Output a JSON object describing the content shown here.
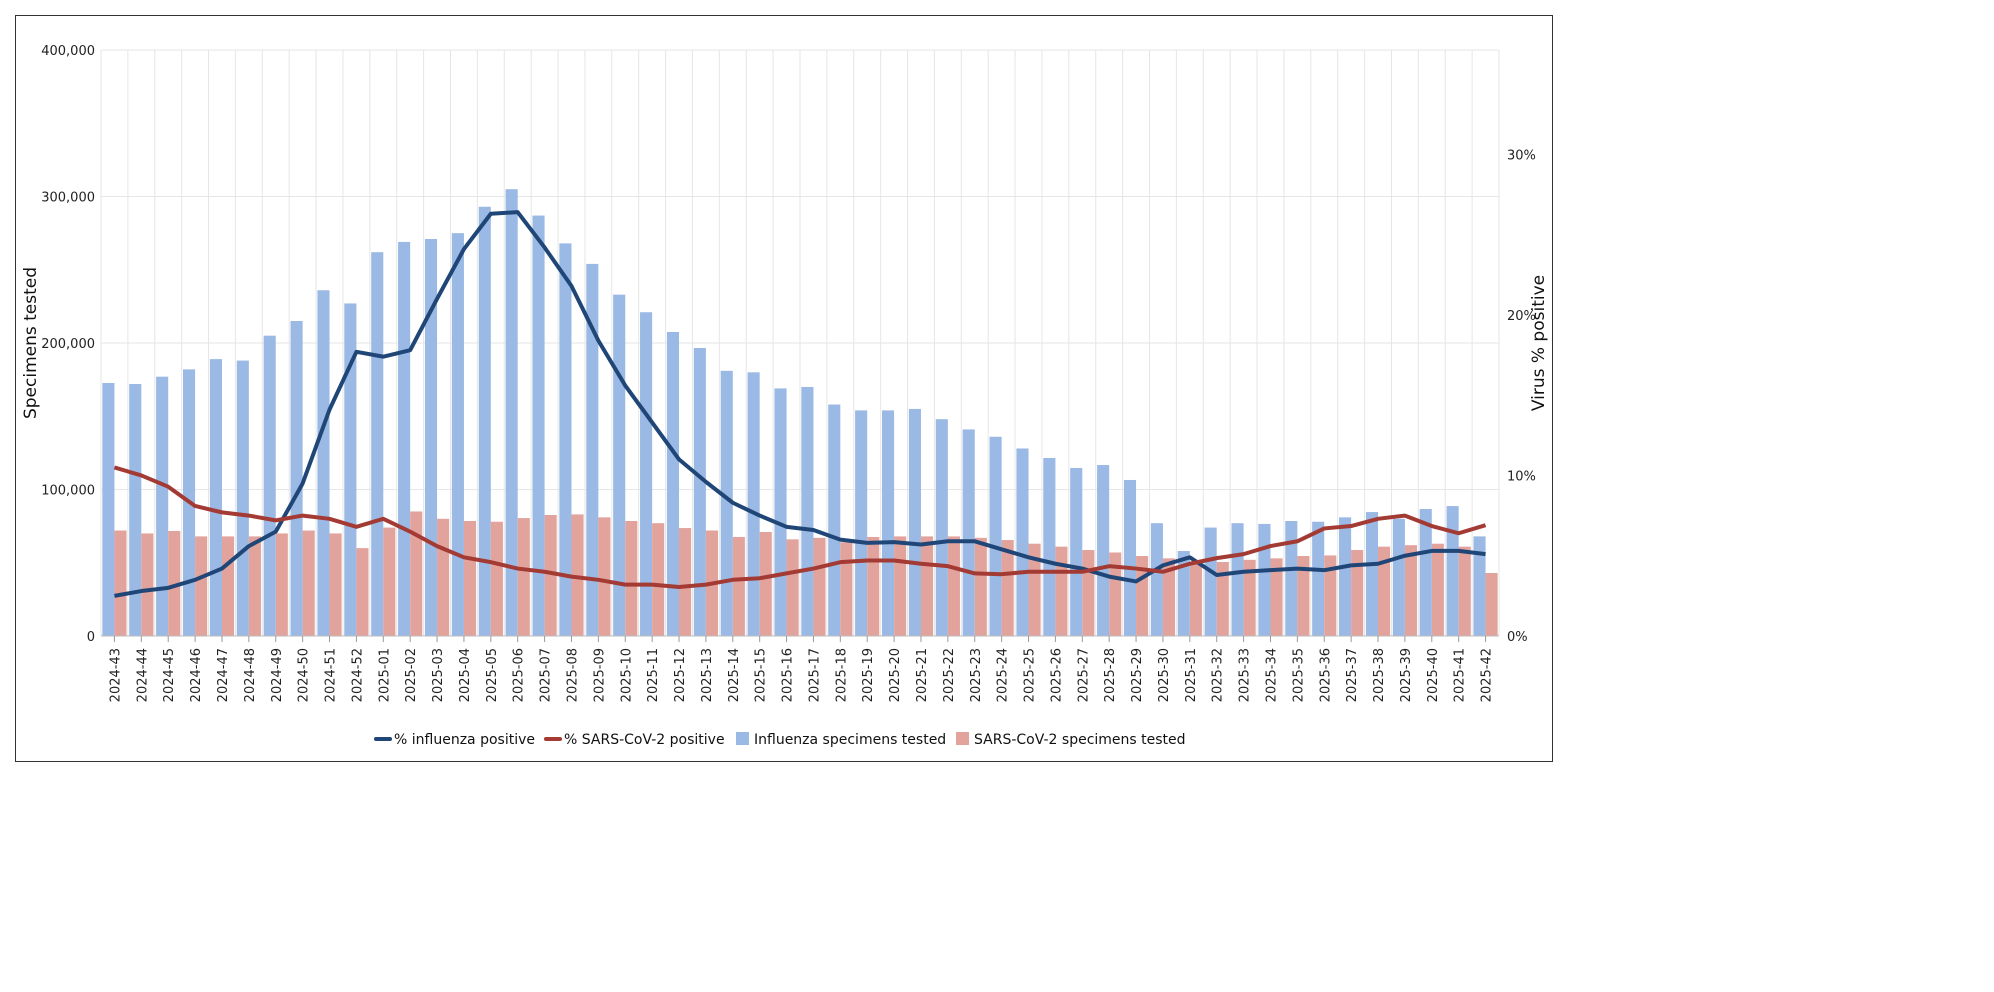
{
  "chart_data": {
    "type": "bar+line",
    "title": "",
    "xlabel": "",
    "ylabel": "Specimens tested",
    "ylabel_right": "Virus % positive",
    "ylim": [
      0,
      400000
    ],
    "ylim_right": [
      0,
      36.5
    ],
    "yticks": [
      "0",
      "100,000",
      "200,000",
      "300,000",
      "400,000"
    ],
    "yticks_right": [
      "0%",
      "10%",
      "20%",
      "30%"
    ],
    "grid": true,
    "legend_position": "bottom",
    "categories": [
      "2024-43",
      "2024-44",
      "2024-45",
      "2024-46",
      "2024-47",
      "2024-48",
      "2024-49",
      "2024-50",
      "2024-51",
      "2024-52",
      "2025-01",
      "2025-02",
      "2025-03",
      "2025-04",
      "2025-05",
      "2025-06",
      "2025-07",
      "2025-08",
      "2025-09",
      "2025-10",
      "2025-11",
      "2025-12",
      "2025-13",
      "2025-14",
      "2025-15",
      "2025-16",
      "2025-17",
      "2025-18",
      "2025-19",
      "2025-20",
      "2025-21",
      "2025-22",
      "2025-23",
      "2025-24",
      "2025-25",
      "2025-26",
      "2025-27",
      "2025-28",
      "2025-29",
      "2025-30",
      "2025-31",
      "2025-32",
      "2025-33",
      "2025-34",
      "2025-35",
      "2025-36",
      "2025-37",
      "2025-38",
      "2025-39",
      "2025-40",
      "2025-41",
      "2025-42"
    ],
    "series": [
      {
        "name": "Influenza specimens tested",
        "kind": "bar",
        "axis": "left",
        "color": "#9ab9e4",
        "values": [
          172700,
          172000,
          177000,
          182000,
          189000,
          188000,
          205000,
          215000,
          236000,
          227000,
          262000,
          269000,
          271000,
          275000,
          293000,
          305000,
          287000,
          268000,
          254000,
          233000,
          221000,
          207500,
          196600,
          181000,
          180000,
          169000,
          170000,
          158000,
          154000,
          154000,
          155000,
          148000,
          141000,
          136000,
          128000,
          121500,
          114700,
          116700,
          106500,
          77000,
          58000,
          74000,
          77000,
          76500,
          78500,
          78000,
          81000,
          84600,
          80000,
          86700,
          88700,
          68000
        ]
      },
      {
        "name": "SARS-CoV-2 specimens tested",
        "kind": "bar",
        "axis": "left",
        "color": "#e3a39d",
        "values": [
          72000,
          70000,
          71700,
          68000,
          68000,
          68000,
          70000,
          72000,
          70000,
          60000,
          74000,
          85000,
          80000,
          78500,
          78000,
          80500,
          82600,
          83000,
          81000,
          78500,
          77000,
          73700,
          72000,
          67600,
          71000,
          66000,
          67000,
          64000,
          67600,
          68000,
          68000,
          68000,
          67000,
          65500,
          63000,
          61000,
          58700,
          57000,
          54600,
          53000,
          50000,
          50500,
          52000,
          53000,
          54600,
          55000,
          58700,
          61000,
          62000,
          63000,
          61000,
          43000
        ]
      },
      {
        "name": "% influenza positive",
        "kind": "line",
        "axis": "right",
        "color": "#1f4677",
        "values": [
          2.5,
          2.8,
          3.0,
          3.5,
          4.2,
          5.6,
          6.5,
          9.5,
          14.1,
          17.7,
          17.4,
          17.8,
          21.0,
          24.1,
          26.3,
          26.4,
          24.2,
          21.8,
          18.4,
          15.6,
          13.3,
          11.0,
          9.6,
          8.3,
          7.5,
          6.8,
          6.6,
          6.0,
          5.8,
          5.85,
          5.7,
          5.9,
          5.9,
          5.4,
          4.9,
          4.5,
          4.2,
          3.7,
          3.4,
          4.4,
          4.9,
          3.8,
          4.0,
          4.1,
          4.2,
          4.1,
          4.4,
          4.5,
          5.0,
          5.3,
          5.3,
          5.1
        ]
      },
      {
        "name": "% SARS-CoV-2 positive",
        "kind": "line",
        "axis": "right",
        "color": "#a33a33",
        "values": [
          10.5,
          10.0,
          9.3,
          8.1,
          7.7,
          7.5,
          7.2,
          7.5,
          7.3,
          6.8,
          7.3,
          6.5,
          5.6,
          4.9,
          4.6,
          4.2,
          4.0,
          3.7,
          3.5,
          3.2,
          3.2,
          3.05,
          3.2,
          3.5,
          3.6,
          3.9,
          4.2,
          4.6,
          4.7,
          4.7,
          4.5,
          4.35,
          3.9,
          3.85,
          4.0,
          4.0,
          4.0,
          4.35,
          4.2,
          4.0,
          4.5,
          4.85,
          5.1,
          5.6,
          5.9,
          6.7,
          6.85,
          7.3,
          7.5,
          6.85,
          6.4,
          6.9
        ]
      }
    ],
    "legend": [
      "% influenza positive",
      "% SARS-CoV-2 positive",
      "Influenza specimens tested",
      "SARS-CoV-2 specimens tested"
    ]
  }
}
